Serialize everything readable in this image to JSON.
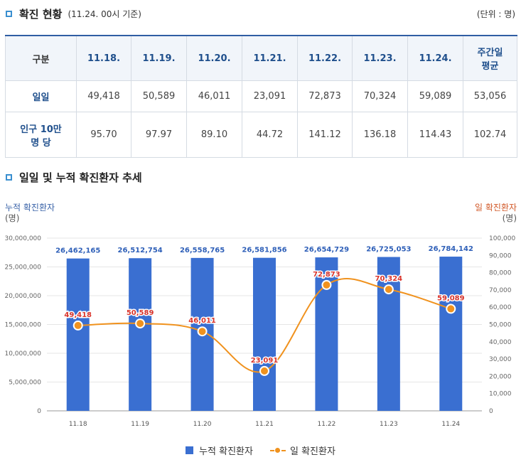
{
  "section1": {
    "title": "확진 현황",
    "subtitle": "(11.24. 00시 기준)",
    "unit": "(단위 : 명)"
  },
  "table": {
    "header": [
      "구분",
      "11.18.",
      "11.19.",
      "11.20.",
      "11.21.",
      "11.22.",
      "11.23.",
      "11.24.",
      "주간일\n평균"
    ],
    "rows": [
      {
        "label": "일일",
        "values": [
          "49,418",
          "50,589",
          "46,011",
          "23,091",
          "72,873",
          "70,324",
          "59,089",
          "53,056"
        ]
      },
      {
        "label": "인구 10만\n명 당",
        "values": [
          "95.70",
          "97.97",
          "89.10",
          "44.72",
          "141.12",
          "136.18",
          "114.43",
          "102.74"
        ]
      }
    ]
  },
  "section2": {
    "title": "일일 및 누적 확진환자 추세"
  },
  "chart_data": {
    "type": "bar",
    "categories": [
      "11.18",
      "11.19",
      "11.20",
      "11.21",
      "11.22",
      "11.23",
      "11.24"
    ],
    "series": [
      {
        "name": "누적 확진환자",
        "type": "bar",
        "axis": "left",
        "color": "#3a6fd1",
        "values": [
          26462165,
          26512754,
          26558765,
          26581856,
          26654729,
          26725053,
          26784142
        ],
        "labels": [
          "26,462,165",
          "26,512,754",
          "26,558,765",
          "26,581,856",
          "26,654,729",
          "26,725,053",
          "26,784,142"
        ]
      },
      {
        "name": "일 확진환자",
        "type": "line",
        "axis": "right",
        "color": "#f0921e",
        "values": [
          49418,
          50589,
          46011,
          23091,
          72873,
          70324,
          59089
        ],
        "labels": [
          "49,418",
          "50,589",
          "46,011",
          "23,091",
          "72,873",
          "70,324",
          "59,089"
        ]
      }
    ],
    "left_axis": {
      "title": "누적 확진환자",
      "unit": "(명)",
      "ylim": [
        0,
        30000000
      ],
      "ticks": [
        "0",
        "5,000,000",
        "10,000,000",
        "15,000,000",
        "20,000,000",
        "25,000,000",
        "30,000,000"
      ]
    },
    "right_axis": {
      "title": "일 확진환자",
      "unit": "(명)",
      "ylim": [
        0,
        100000
      ],
      "ticks": [
        "0",
        "10,000",
        "20,000",
        "30,000",
        "40,000",
        "50,000",
        "60,000",
        "70,000",
        "80,000",
        "90,000",
        "100,000"
      ]
    },
    "legend_position": "bottom-center"
  }
}
